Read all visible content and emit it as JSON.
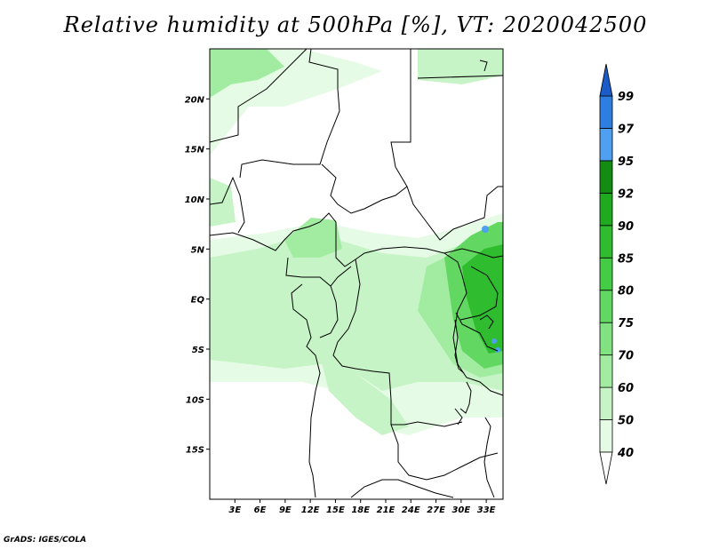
{
  "title": "Relative humidity at 500hPa [%], VT: 2020042500",
  "credit": "GrADS: IGES/COLA",
  "map": {
    "lon_range": [
      0,
      35
    ],
    "lat_range": [
      -20,
      25
    ],
    "lat_ticks": [
      "20N",
      "15N",
      "10N",
      "5N",
      "EQ",
      "5S",
      "10S",
      "15S"
    ],
    "lon_ticks": [
      "3E",
      "6E",
      "9E",
      "12E",
      "15E",
      "18E",
      "21E",
      "24E",
      "27E",
      "30E",
      "33E"
    ]
  },
  "colorbar": {
    "levels": [
      "40",
      "50",
      "60",
      "70",
      "75",
      "80",
      "85",
      "90",
      "92",
      "95",
      "97",
      "99"
    ],
    "colors": {
      "lt40": "#ffffff",
      "40_50": "#e6fbe6",
      "50_60": "#c6f4c6",
      "60_70": "#a2eca2",
      "70_75": "#82e282",
      "75_80": "#62d862",
      "80_85": "#44cc44",
      "85_90": "#2fbc2f",
      "90_92": "#1faa1f",
      "92_95": "#128c12",
      "95_97": "#4fa0f0",
      "97_99": "#2e7de0",
      "gt99": "#1c5cc8"
    }
  }
}
